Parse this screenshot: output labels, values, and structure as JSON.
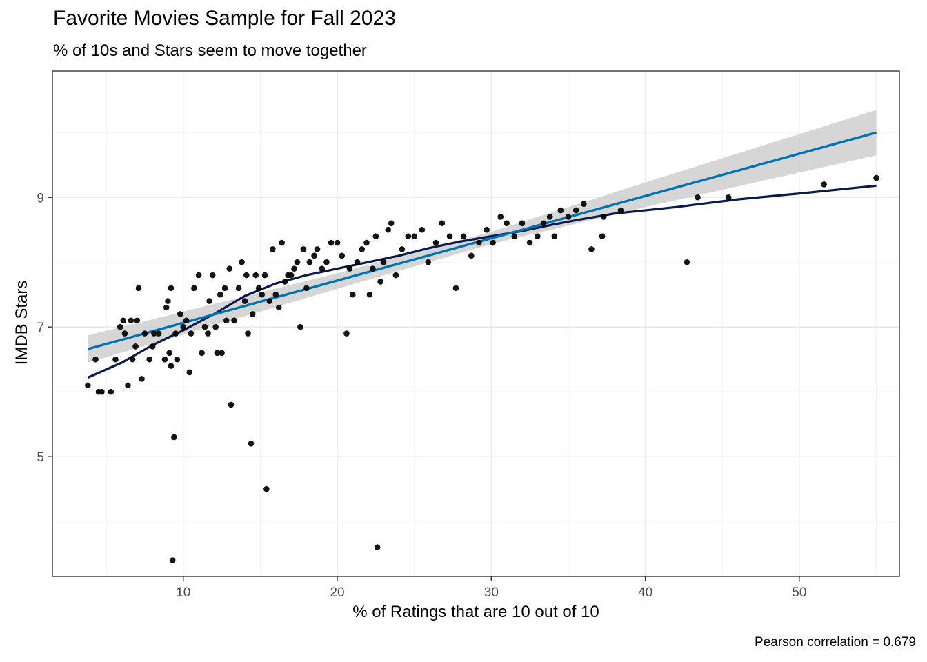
{
  "chart_data": {
    "type": "scatter",
    "title": "Favorite Movies Sample for Fall 2023",
    "subtitle": "% of 10s and Stars seem to move together",
    "xlabel": "% of Ratings that are 10 out of 10",
    "ylabel": "IMDB Stars",
    "caption": "Pearson correlation = 0.679",
    "xlim": [
      1.5,
      56.5
    ],
    "ylim": [
      3.15,
      10.95
    ],
    "x_ticks": [
      10,
      20,
      30,
      40,
      50
    ],
    "y_ticks": [
      5,
      7,
      9
    ],
    "grid": true,
    "legend": "none",
    "colors": {
      "points": "#000000",
      "linear_fit": "#0072b2",
      "loess_fit": "#0b1a4a",
      "band": "#cccccc"
    },
    "points": [
      [
        3.8,
        6.1
      ],
      [
        4.3,
        6.5
      ],
      [
        4.5,
        6.0
      ],
      [
        4.7,
        6.0
      ],
      [
        5.3,
        6.0
      ],
      [
        5.6,
        6.5
      ],
      [
        5.9,
        7.0
      ],
      [
        6.1,
        7.1
      ],
      [
        6.2,
        6.9
      ],
      [
        6.4,
        6.1
      ],
      [
        6.6,
        7.1
      ],
      [
        6.7,
        6.5
      ],
      [
        6.9,
        6.7
      ],
      [
        7.0,
        7.1
      ],
      [
        7.1,
        7.6
      ],
      [
        7.3,
        6.2
      ],
      [
        7.5,
        6.9
      ],
      [
        7.8,
        6.5
      ],
      [
        8.0,
        6.7
      ],
      [
        8.1,
        6.9
      ],
      [
        8.4,
        6.9
      ],
      [
        8.8,
        6.5
      ],
      [
        8.9,
        7.3
      ],
      [
        9.0,
        7.4
      ],
      [
        9.1,
        6.6
      ],
      [
        9.2,
        6.4
      ],
      [
        9.2,
        7.6
      ],
      [
        9.3,
        3.4
      ],
      [
        9.4,
        5.3
      ],
      [
        9.5,
        6.9
      ],
      [
        9.6,
        6.5
      ],
      [
        9.8,
        7.2
      ],
      [
        10.0,
        7.0
      ],
      [
        10.2,
        7.1
      ],
      [
        10.4,
        6.3
      ],
      [
        10.5,
        6.9
      ],
      [
        10.7,
        7.6
      ],
      [
        11.0,
        7.8
      ],
      [
        11.2,
        6.6
      ],
      [
        11.4,
        7.0
      ],
      [
        11.6,
        6.9
      ],
      [
        11.7,
        7.4
      ],
      [
        11.9,
        7.8
      ],
      [
        12.1,
        7.0
      ],
      [
        12.2,
        6.6
      ],
      [
        12.4,
        7.5
      ],
      [
        12.5,
        6.6
      ],
      [
        12.7,
        7.6
      ],
      [
        12.8,
        7.1
      ],
      [
        13.0,
        7.9
      ],
      [
        13.1,
        5.8
      ],
      [
        13.3,
        7.1
      ],
      [
        13.6,
        7.6
      ],
      [
        13.8,
        8.0
      ],
      [
        14.0,
        7.4
      ],
      [
        14.1,
        7.8
      ],
      [
        14.2,
        6.9
      ],
      [
        14.4,
        5.2
      ],
      [
        14.5,
        7.2
      ],
      [
        14.7,
        7.8
      ],
      [
        14.9,
        7.6
      ],
      [
        15.1,
        7.5
      ],
      [
        15.3,
        7.8
      ],
      [
        15.4,
        4.5
      ],
      [
        15.6,
        7.4
      ],
      [
        15.8,
        8.2
      ],
      [
        16.0,
        7.5
      ],
      [
        16.2,
        7.3
      ],
      [
        16.4,
        8.3
      ],
      [
        16.6,
        7.7
      ],
      [
        16.8,
        7.8
      ],
      [
        17.0,
        7.8
      ],
      [
        17.2,
        7.9
      ],
      [
        17.4,
        8.0
      ],
      [
        17.6,
        7.0
      ],
      [
        17.8,
        8.2
      ],
      [
        18.0,
        7.6
      ],
      [
        18.2,
        8.0
      ],
      [
        18.5,
        8.1
      ],
      [
        18.7,
        8.2
      ],
      [
        19.0,
        7.9
      ],
      [
        19.3,
        8.0
      ],
      [
        19.6,
        8.3
      ],
      [
        20.0,
        8.3
      ],
      [
        20.3,
        8.1
      ],
      [
        20.6,
        6.9
      ],
      [
        20.8,
        7.9
      ],
      [
        21.0,
        7.5
      ],
      [
        21.3,
        8.0
      ],
      [
        21.6,
        8.2
      ],
      [
        21.9,
        8.3
      ],
      [
        22.1,
        7.5
      ],
      [
        22.3,
        7.9
      ],
      [
        22.5,
        8.4
      ],
      [
        22.6,
        3.6
      ],
      [
        22.8,
        7.7
      ],
      [
        23.0,
        8.0
      ],
      [
        23.3,
        8.5
      ],
      [
        23.5,
        8.6
      ],
      [
        23.8,
        7.8
      ],
      [
        24.2,
        8.2
      ],
      [
        24.6,
        8.4
      ],
      [
        25.0,
        8.4
      ],
      [
        25.5,
        8.5
      ],
      [
        25.9,
        8.0
      ],
      [
        26.4,
        8.3
      ],
      [
        26.8,
        8.6
      ],
      [
        27.3,
        8.4
      ],
      [
        27.7,
        7.6
      ],
      [
        28.2,
        8.4
      ],
      [
        28.7,
        8.1
      ],
      [
        29.2,
        8.3
      ],
      [
        29.7,
        8.5
      ],
      [
        30.1,
        8.3
      ],
      [
        30.6,
        8.7
      ],
      [
        31.0,
        8.6
      ],
      [
        31.5,
        8.4
      ],
      [
        32.0,
        8.6
      ],
      [
        32.5,
        8.3
      ],
      [
        33.0,
        8.4
      ],
      [
        33.4,
        8.6
      ],
      [
        33.8,
        8.7
      ],
      [
        34.1,
        8.4
      ],
      [
        34.5,
        8.8
      ],
      [
        35.0,
        8.7
      ],
      [
        35.5,
        8.8
      ],
      [
        36.0,
        8.9
      ],
      [
        36.5,
        8.2
      ],
      [
        37.2,
        8.4
      ],
      [
        37.3,
        8.7
      ],
      [
        38.4,
        8.8
      ],
      [
        42.7,
        8.0
      ],
      [
        43.4,
        9.0
      ],
      [
        45.4,
        9.0
      ],
      [
        51.6,
        9.2
      ],
      [
        55.0,
        9.3
      ]
    ],
    "linear_fit": [
      [
        3.8,
        6.66
      ],
      [
        55.0,
        10.0
      ]
    ],
    "linear_band_upper": [
      [
        3.8,
        6.87
      ],
      [
        20.0,
        7.83
      ],
      [
        30.0,
        8.47
      ],
      [
        40.0,
        9.23
      ],
      [
        55.0,
        10.35
      ]
    ],
    "linear_band_lower": [
      [
        55.0,
        9.65
      ],
      [
        40.0,
        8.85
      ],
      [
        30.0,
        8.28
      ],
      [
        20.0,
        7.59
      ],
      [
        3.8,
        6.45
      ]
    ],
    "loess_fit": [
      [
        3.8,
        6.22
      ],
      [
        6.0,
        6.45
      ],
      [
        8.0,
        6.72
      ],
      [
        10.0,
        6.95
      ],
      [
        12.0,
        7.2
      ],
      [
        14.0,
        7.48
      ],
      [
        16.0,
        7.67
      ],
      [
        18.0,
        7.8
      ],
      [
        20.0,
        7.9
      ],
      [
        22.0,
        8.0
      ],
      [
        24.0,
        8.1
      ],
      [
        26.0,
        8.22
      ],
      [
        28.0,
        8.32
      ],
      [
        30.0,
        8.4
      ],
      [
        32.0,
        8.48
      ],
      [
        34.0,
        8.58
      ],
      [
        36.0,
        8.67
      ],
      [
        38.0,
        8.75
      ],
      [
        42.0,
        8.85
      ],
      [
        46.0,
        8.97
      ],
      [
        50.0,
        9.06
      ],
      [
        55.0,
        9.18
      ]
    ]
  }
}
